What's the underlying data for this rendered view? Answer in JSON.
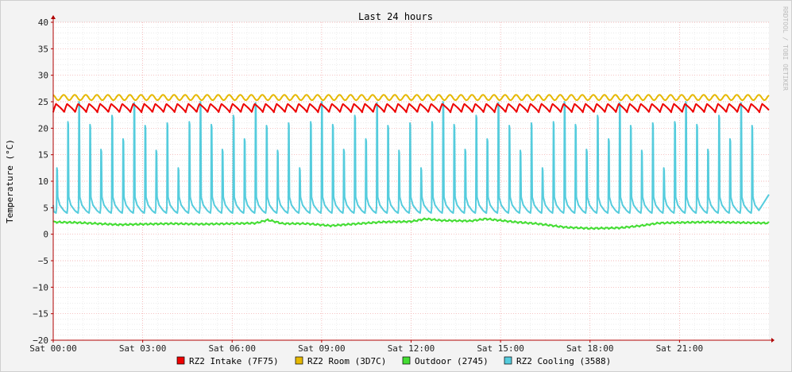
{
  "chart_data": {
    "type": "line",
    "title": "Last 24 hours",
    "ylabel": "Temperature (°C)",
    "xlabel": "",
    "ylim": [
      -20,
      40
    ],
    "yticks": [
      40,
      35,
      30,
      25,
      20,
      15,
      10,
      5,
      0,
      -5,
      -10,
      -15,
      -20
    ],
    "ytick_labels": [
      "40",
      "35",
      "30",
      "25",
      "20",
      "15",
      "10",
      "5",
      "0",
      "−5",
      "−10",
      "−15",
      "−20"
    ],
    "xlim_hours": [
      0,
      24
    ],
    "xtick_labels": [
      "Sat 00:00",
      "Sat 03:00",
      "Sat 06:00",
      "Sat 09:00",
      "Sat 12:00",
      "Sat 15:00",
      "Sat 18:00",
      "Sat 21:00"
    ],
    "grid": true,
    "legend_placement": "bottom",
    "watermark": "RRDTOOL / TOBI OETIKER",
    "series": [
      {
        "name": "RZ2 Intake (7F75)",
        "color": "#ee0000",
        "kind": "sawtooth",
        "min": 23.0,
        "max": 24.6,
        "period_hours": 0.37
      },
      {
        "name": "RZ2 Room (3D7C)",
        "color": "#e6b800",
        "kind": "wave",
        "min": 25.3,
        "max": 26.3,
        "period_hours": 0.37
      },
      {
        "name": "Outdoor (2745)",
        "color": "#44dd33",
        "kind": "profile",
        "points": [
          [
            0,
            2.3
          ],
          [
            0.8,
            2.2
          ],
          [
            1.5,
            2.0
          ],
          [
            2.2,
            1.8
          ],
          [
            3,
            1.9
          ],
          [
            4,
            2.0
          ],
          [
            5,
            1.9
          ],
          [
            6,
            2.0
          ],
          [
            6.8,
            2.1
          ],
          [
            7.2,
            2.7
          ],
          [
            7.7,
            2.0
          ],
          [
            8.5,
            2.0
          ],
          [
            9.3,
            1.6
          ],
          [
            10,
            1.9
          ],
          [
            11,
            2.3
          ],
          [
            12,
            2.4
          ],
          [
            12.5,
            2.9
          ],
          [
            13,
            2.6
          ],
          [
            14,
            2.5
          ],
          [
            14.5,
            2.9
          ],
          [
            15,
            2.6
          ],
          [
            15.5,
            2.3
          ],
          [
            16.2,
            2.0
          ],
          [
            17.2,
            1.3
          ],
          [
            18,
            1.1
          ],
          [
            19,
            1.2
          ],
          [
            19.7,
            1.6
          ],
          [
            20.3,
            2.1
          ],
          [
            21,
            2.2
          ],
          [
            22,
            2.3
          ],
          [
            23,
            2.2
          ],
          [
            24,
            2.1
          ]
        ]
      },
      {
        "name": "RZ2 Cooling (3588)",
        "color": "#55ccdd",
        "kind": "pulses",
        "baseline": 4.0,
        "period_hours": 0.37,
        "peaks": [
          12.5,
          21.2,
          25.0,
          20.7,
          16.0,
          22.4,
          18.0,
          24.8,
          20.5,
          15.8,
          21.0
        ]
      }
    ]
  }
}
